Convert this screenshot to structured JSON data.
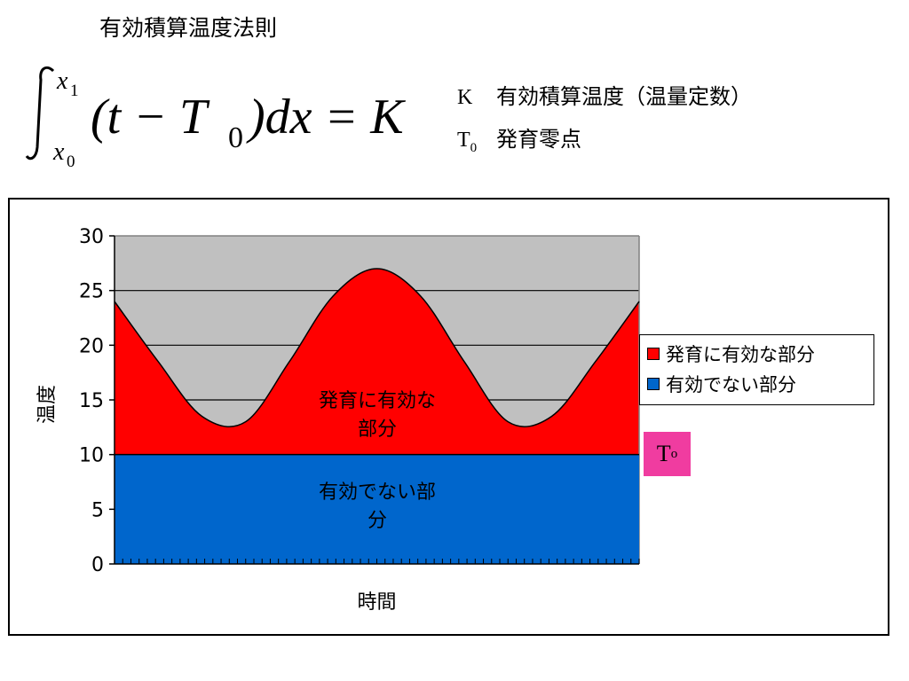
{
  "slide": {
    "title": "有効積算温度法則"
  },
  "formula": {
    "lower_limit": "x",
    "lower_sub": "0",
    "upper_limit": "x",
    "upper_sub": "1",
    "integrand": "(t − T",
    "integrand_sub": "0",
    "rest": ")dx = K"
  },
  "definitions": [
    {
      "symbol": "K",
      "symbol_sub": "",
      "text": "有効積算温度（温量定数）"
    },
    {
      "symbol": "T",
      "symbol_sub": "0",
      "text": "発育零点"
    }
  ],
  "chart_data": {
    "type": "area",
    "title": "",
    "xlabel": "時間",
    "ylabel": "温度",
    "ylim": [
      0,
      30
    ],
    "yticks": [
      0,
      5,
      10,
      15,
      20,
      25,
      30
    ],
    "x_tick_count": 64,
    "threshold": 10,
    "series": [
      {
        "name": "有効でない部分",
        "color": "#0066cc",
        "description": "temperature below threshold T0 (10)"
      },
      {
        "name": "発育に有効な部分",
        "color": "#ff0000",
        "description": "temperature above threshold T0"
      }
    ],
    "temperature_curve": {
      "x": [
        0,
        4,
        8,
        12,
        16,
        20,
        24,
        28,
        32,
        36,
        40,
        44,
        48
      ],
      "y": [
        24,
        18.5,
        13.5,
        13,
        18.5,
        24.5,
        27,
        24.5,
        18.5,
        13,
        13.5,
        18.5,
        24
      ]
    },
    "plot_background": "#c0c0c0",
    "grid": true,
    "legend_position": "right"
  },
  "labels": {
    "legend_effective": "発育に有効な部分",
    "legend_noneffective": "有効でない部分",
    "region_effective": "発育に有効な\n部分",
    "region_effective_line1": "発育に有効な",
    "region_effective_line2": "部分",
    "region_noneffective_line1": "有効でない部",
    "region_noneffective_line2": "分",
    "t0_symbol": "T",
    "t0_sub": "o",
    "t0_color": "#f03ca0"
  }
}
